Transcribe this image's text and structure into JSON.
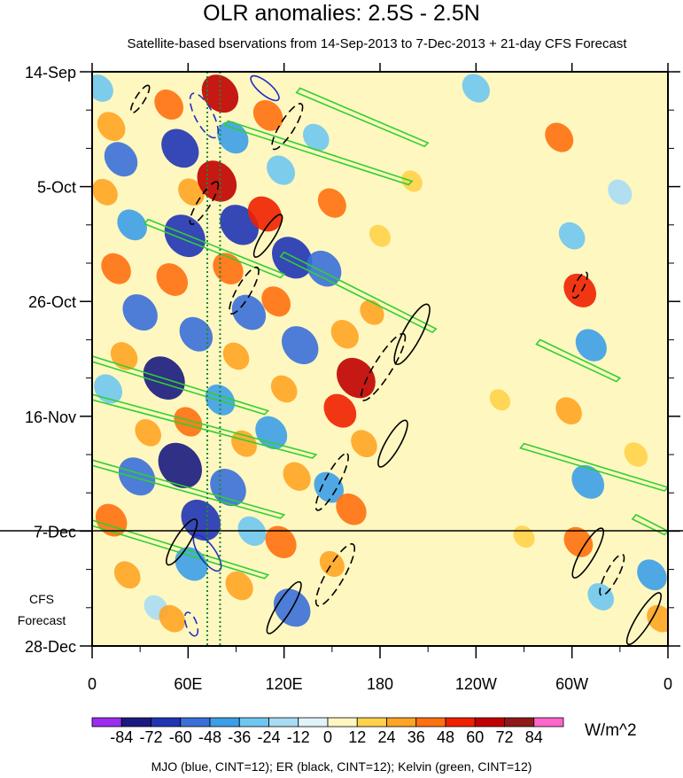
{
  "chart_data": {
    "type": "heatmap",
    "title": "OLR anomalies: 2.5S - 2.5N",
    "subtitle": "Satellite-based bservations from 14-Sep-2013 to 7-Dec-2013 + 21-day CFS Forecast",
    "x_ticks": [
      "0",
      "60E",
      "120E",
      "180",
      "120W",
      "60W",
      "0"
    ],
    "x_tick_values": [
      0,
      60,
      120,
      180,
      240,
      300,
      360
    ],
    "y_ticks": [
      "14-Sep",
      "5-Oct",
      "26-Oct",
      "16-Nov",
      "7-Dec",
      "28-Dec"
    ],
    "y_tick_values": [
      0,
      21,
      42,
      63,
      84,
      105
    ],
    "observation_end": "7-Dec",
    "forecast_label": "CFS Forecast",
    "reference_lines_longitude": [
      72,
      80
    ],
    "colorbar": {
      "labels": [
        "-84",
        "-72",
        "-60",
        "-48",
        "-36",
        "-24",
        "-12",
        "0",
        "12",
        "24",
        "36",
        "48",
        "60",
        "72",
        "84"
      ],
      "colors": [
        "#9c2cf0",
        "#1a1a80",
        "#2034b4",
        "#3a6fd8",
        "#3c9ee8",
        "#6fc7f0",
        "#a8dcf4",
        "#dff3f8",
        "#fff7c0",
        "#ffd24a",
        "#ffa424",
        "#ff7010",
        "#f02000",
        "#c00000",
        "#901818",
        "#ff66cc"
      ],
      "units": "W/m^2"
    },
    "legend_note": "MJO (blue, CINT=12); ER (black, CINT=12); Kelvin (green, CINT=12)",
    "series_colors": {
      "mjo": "#2030c0",
      "er": "#000000",
      "kelvin": "#30d030"
    },
    "anomaly_cells": [
      {
        "lon": 5,
        "day": 3,
        "v": -30
      },
      {
        "lon": 12,
        "day": 10,
        "v": 35
      },
      {
        "lon": 18,
        "day": 16,
        "v": -50
      },
      {
        "lon": 8,
        "day": 22,
        "v": 28
      },
      {
        "lon": 25,
        "day": 28,
        "v": -40
      },
      {
        "lon": 15,
        "day": 36,
        "v": 40
      },
      {
        "lon": 30,
        "day": 44,
        "v": -55
      },
      {
        "lon": 20,
        "day": 52,
        "v": 32
      },
      {
        "lon": 10,
        "day": 58,
        "v": -36
      },
      {
        "lon": 35,
        "day": 66,
        "v": 30
      },
      {
        "lon": 28,
        "day": 74,
        "v": -60
      },
      {
        "lon": 12,
        "day": 82,
        "v": 45
      },
      {
        "lon": 22,
        "day": 92,
        "v": 30
      },
      {
        "lon": 40,
        "day": 98,
        "v": -24
      },
      {
        "lon": 48,
        "day": 6,
        "v": 38
      },
      {
        "lon": 55,
        "day": 14,
        "v": -62
      },
      {
        "lon": 62,
        "day": 22,
        "v": 30
      },
      {
        "lon": 58,
        "day": 30,
        "v": -72
      },
      {
        "lon": 50,
        "day": 38,
        "v": 45
      },
      {
        "lon": 65,
        "day": 48,
        "v": -50
      },
      {
        "lon": 45,
        "day": 56,
        "v": -74
      },
      {
        "lon": 60,
        "day": 64,
        "v": 36
      },
      {
        "lon": 55,
        "day": 72,
        "v": -80
      },
      {
        "lon": 68,
        "day": 82,
        "v": -68
      },
      {
        "lon": 62,
        "day": 90,
        "v": -48
      },
      {
        "lon": 50,
        "day": 100,
        "v": 30
      },
      {
        "lon": 80,
        "day": 4,
        "v": 60
      },
      {
        "lon": 88,
        "day": 12,
        "v": -44
      },
      {
        "lon": 78,
        "day": 20,
        "v": 68
      },
      {
        "lon": 92,
        "day": 28,
        "v": -66
      },
      {
        "lon": 85,
        "day": 36,
        "v": 42
      },
      {
        "lon": 98,
        "day": 44,
        "v": -52
      },
      {
        "lon": 90,
        "day": 52,
        "v": 30
      },
      {
        "lon": 80,
        "day": 60,
        "v": -40
      },
      {
        "lon": 95,
        "day": 68,
        "v": 28
      },
      {
        "lon": 85,
        "day": 76,
        "v": -58
      },
      {
        "lon": 100,
        "day": 84,
        "v": -36
      },
      {
        "lon": 92,
        "day": 94,
        "v": 34
      },
      {
        "lon": 110,
        "day": 8,
        "v": 40
      },
      {
        "lon": 118,
        "day": 18,
        "v": -36
      },
      {
        "lon": 108,
        "day": 26,
        "v": 52
      },
      {
        "lon": 125,
        "day": 34,
        "v": -70
      },
      {
        "lon": 115,
        "day": 42,
        "v": 38
      },
      {
        "lon": 130,
        "day": 50,
        "v": -60
      },
      {
        "lon": 120,
        "day": 58,
        "v": 30
      },
      {
        "lon": 112,
        "day": 66,
        "v": -46
      },
      {
        "lon": 128,
        "day": 74,
        "v": 34
      },
      {
        "lon": 118,
        "day": 86,
        "v": 44
      },
      {
        "lon": 125,
        "day": 98,
        "v": -60
      },
      {
        "lon": 140,
        "day": 12,
        "v": -30
      },
      {
        "lon": 150,
        "day": 24,
        "v": 36
      },
      {
        "lon": 145,
        "day": 36,
        "v": -54
      },
      {
        "lon": 158,
        "day": 48,
        "v": 34
      },
      {
        "lon": 165,
        "day": 56,
        "v": 66
      },
      {
        "lon": 155,
        "day": 62,
        "v": 48
      },
      {
        "lon": 170,
        "day": 68,
        "v": 30
      },
      {
        "lon": 148,
        "day": 76,
        "v": -40
      },
      {
        "lon": 162,
        "day": 80,
        "v": 42
      },
      {
        "lon": 150,
        "day": 90,
        "v": 26
      },
      {
        "lon": 175,
        "day": 44,
        "v": 24
      },
      {
        "lon": 180,
        "day": 30,
        "v": 16
      },
      {
        "lon": 200,
        "day": 20,
        "v": 14
      },
      {
        "lon": 240,
        "day": 3,
        "v": -34
      },
      {
        "lon": 255,
        "day": 60,
        "v": 14
      },
      {
        "lon": 270,
        "day": 85,
        "v": 16
      },
      {
        "lon": 292,
        "day": 12,
        "v": 36
      },
      {
        "lon": 300,
        "day": 30,
        "v": -30
      },
      {
        "lon": 305,
        "day": 40,
        "v": 48
      },
      {
        "lon": 312,
        "day": 50,
        "v": -44
      },
      {
        "lon": 298,
        "day": 62,
        "v": 30
      },
      {
        "lon": 310,
        "day": 75,
        "v": -48
      },
      {
        "lon": 304,
        "day": 86,
        "v": 38
      },
      {
        "lon": 318,
        "day": 96,
        "v": -30
      },
      {
        "lon": 330,
        "day": 22,
        "v": -24
      },
      {
        "lon": 340,
        "day": 70,
        "v": 22
      },
      {
        "lon": 350,
        "day": 92,
        "v": -40
      },
      {
        "lon": 355,
        "day": 100,
        "v": 30
      }
    ],
    "kelvin_bands": [
      {
        "lon": [
          130,
          210
        ],
        "day": [
          3,
          13
        ]
      },
      {
        "lon": [
          85,
          200
        ],
        "day": [
          9,
          20
        ]
      },
      {
        "lon": [
          35,
          120
        ],
        "day": [
          27,
          37
        ]
      },
      {
        "lon": [
          120,
          215
        ],
        "day": [
          33,
          47
        ]
      },
      {
        "lon": [
          0,
          110
        ],
        "day": [
          52,
          62
        ]
      },
      {
        "lon": [
          0,
          140
        ],
        "day": [
          59,
          70
        ]
      },
      {
        "lon": [
          0,
          120
        ],
        "day": [
          71,
          81
        ]
      },
      {
        "lon": [
          0,
          110
        ],
        "day": [
          82,
          92
        ]
      },
      {
        "lon": [
          280,
          330
        ],
        "day": [
          49,
          56
        ]
      },
      {
        "lon": [
          270,
          360
        ],
        "day": [
          68,
          76
        ]
      },
      {
        "lon": [
          340,
          360
        ],
        "day": [
          81,
          84
        ]
      }
    ],
    "er_contours": [
      {
        "lon": 200,
        "day": 48,
        "rx": 38,
        "ry": 10,
        "angle": -62,
        "dashed": false
      },
      {
        "lon": 182,
        "day": 54,
        "rx": 44,
        "ry": 10,
        "angle": -58,
        "dashed": true
      },
      {
        "lon": 95,
        "day": 40,
        "rx": 30,
        "ry": 8,
        "angle": -60,
        "dashed": true
      },
      {
        "lon": 70,
        "day": 24,
        "rx": 28,
        "ry": 7,
        "angle": -58,
        "dashed": true
      },
      {
        "lon": 110,
        "day": 30,
        "rx": 28,
        "ry": 7,
        "angle": -58,
        "dashed": false
      },
      {
        "lon": 122,
        "day": 10,
        "rx": 30,
        "ry": 8,
        "angle": -58,
        "dashed": true
      },
      {
        "lon": 150,
        "day": 75,
        "rx": 36,
        "ry": 8,
        "angle": -62,
        "dashed": true
      },
      {
        "lon": 152,
        "day": 92,
        "rx": 40,
        "ry": 10,
        "angle": -60,
        "dashed": true
      },
      {
        "lon": 120,
        "day": 98,
        "rx": 34,
        "ry": 8,
        "angle": -58,
        "dashed": false
      },
      {
        "lon": 56,
        "day": 86,
        "rx": 30,
        "ry": 8,
        "angle": -58,
        "dashed": false
      },
      {
        "lon": 310,
        "day": 88,
        "rx": 32,
        "ry": 8,
        "angle": -60,
        "dashed": false
      },
      {
        "lon": 325,
        "day": 92,
        "rx": 26,
        "ry": 7,
        "angle": -62,
        "dashed": true
      },
      {
        "lon": 345,
        "day": 100,
        "rx": 34,
        "ry": 8,
        "angle": -58,
        "dashed": false
      },
      {
        "lon": 305,
        "day": 39,
        "rx": 16,
        "ry": 5,
        "angle": -64,
        "dashed": true
      },
      {
        "lon": 30,
        "day": 5,
        "rx": 18,
        "ry": 5,
        "angle": -58,
        "dashed": true
      },
      {
        "lon": 188,
        "day": 68,
        "rx": 30,
        "ry": 8,
        "angle": -60,
        "dashed": false
      }
    ],
    "mjo_contours": [
      {
        "lon": 70,
        "day": 8,
        "rx": 28,
        "ry": 10,
        "angle": 62,
        "dashed": true
      },
      {
        "lon": 108,
        "day": 3,
        "rx": 20,
        "ry": 7,
        "angle": 40,
        "dashed": false
      },
      {
        "lon": 72,
        "day": 88,
        "rx": 24,
        "ry": 9,
        "angle": 55,
        "dashed": false
      },
      {
        "lon": 62,
        "day": 101,
        "rx": 14,
        "ry": 6,
        "angle": 70,
        "dashed": true
      }
    ]
  }
}
